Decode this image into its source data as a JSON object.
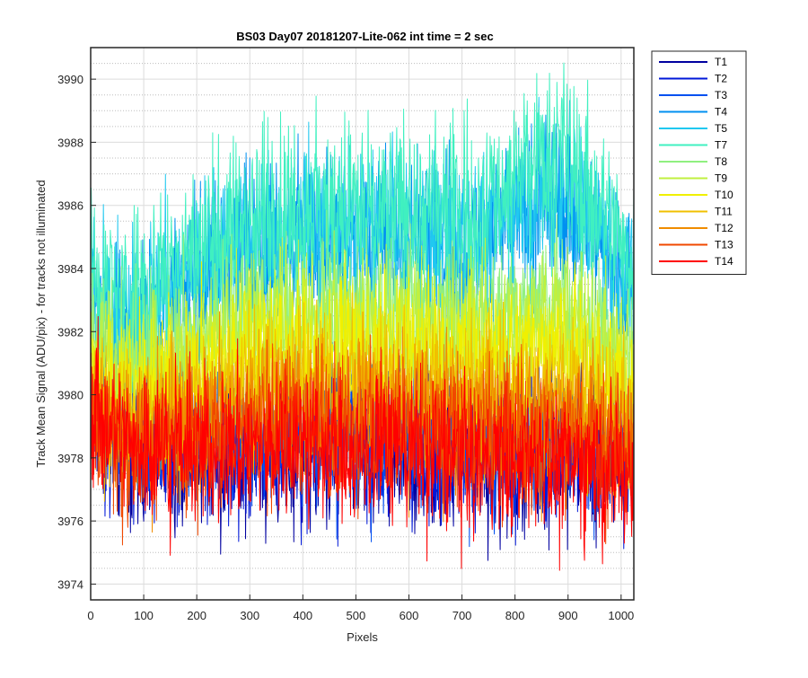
{
  "chart_data": {
    "type": "line",
    "title": "BS03 Day07 20181207-Lite-062 int time = 2 sec",
    "xlabel": "Pixels",
    "ylabel": "Track Mean Signal (ADU/pix) - for tracks not illuminated",
    "xlim": [
      0,
      1024
    ],
    "ylim": [
      3973.5,
      3991
    ],
    "x_ticks": [
      0,
      100,
      200,
      300,
      400,
      500,
      600,
      700,
      800,
      900,
      1000
    ],
    "y_ticks": [
      3974,
      3976,
      3978,
      3980,
      3982,
      3984,
      3986,
      3988,
      3990
    ],
    "x_tick_labels": [
      "0",
      "100",
      "200",
      "300",
      "400",
      "500",
      "600",
      "700",
      "800",
      "900",
      "1000"
    ],
    "y_tick_labels": [
      "3974",
      "3976",
      "3978",
      "3980",
      "3982",
      "3984",
      "3986",
      "3988",
      "3990"
    ],
    "grid": true,
    "legend_position": "outside-right",
    "x_samples": [
      0,
      64,
      128,
      192,
      256,
      320,
      384,
      448,
      512,
      576,
      640,
      704,
      768,
      832,
      896,
      960,
      1024
    ],
    "series": [
      {
        "name": "T1",
        "color": "#0000a0",
        "noise_amplitude": 2.5,
        "mean_values": [
          3979.5,
          3978.4,
          3978.2,
          3978.1,
          3978.2,
          3978.1,
          3978.2,
          3978.2,
          3978.1,
          3978.2,
          3978.1,
          3978.0,
          3978.0,
          3978.0,
          3978.1,
          3978.0,
          3978.2
        ]
      },
      {
        "name": "T2",
        "color": "#0018d8",
        "noise_amplitude": 2.5,
        "mean_values": [
          3979.8,
          3978.7,
          3978.5,
          3978.4,
          3978.5,
          3978.4,
          3978.5,
          3978.5,
          3978.4,
          3978.5,
          3978.4,
          3978.3,
          3978.3,
          3978.3,
          3978.4,
          3978.3,
          3978.5
        ]
      },
      {
        "name": "T3",
        "color": "#0050f0",
        "noise_amplitude": 2.5,
        "mean_values": [
          3980.0,
          3979.0,
          3978.8,
          3978.7,
          3978.8,
          3978.7,
          3978.8,
          3978.8,
          3978.7,
          3978.8,
          3978.7,
          3978.6,
          3978.6,
          3978.6,
          3978.7,
          3978.6,
          3978.8
        ]
      },
      {
        "name": "T4",
        "color": "#0090f0",
        "noise_amplitude": 2.8,
        "mean_values": [
          3983.0,
          3982.0,
          3983.0,
          3983.6,
          3984.3,
          3984.7,
          3984.9,
          3985.0,
          3985.0,
          3985.0,
          3984.8,
          3984.8,
          3985.3,
          3986.0,
          3986.3,
          3985.0,
          3983.3
        ]
      },
      {
        "name": "T5",
        "color": "#20c8f0",
        "noise_amplitude": 2.8,
        "mean_values": [
          3983.2,
          3982.2,
          3983.2,
          3983.8,
          3984.5,
          3984.9,
          3985.1,
          3985.2,
          3985.2,
          3985.2,
          3985.0,
          3985.0,
          3985.6,
          3986.3,
          3986.7,
          3985.3,
          3983.5
        ]
      },
      {
        "name": "T7",
        "color": "#40f0c0",
        "noise_amplitude": 3.0,
        "mean_values": [
          3984.0,
          3983.0,
          3983.8,
          3984.5,
          3985.2,
          3985.6,
          3985.8,
          3985.9,
          3985.9,
          3985.9,
          3985.7,
          3985.8,
          3986.5,
          3987.2,
          3987.6,
          3986.0,
          3984.2
        ]
      },
      {
        "name": "T8",
        "color": "#90f080",
        "noise_amplitude": 2.6,
        "mean_values": [
          3982.0,
          3981.0,
          3981.3,
          3981.8,
          3982.3,
          3982.5,
          3982.6,
          3982.6,
          3982.5,
          3982.6,
          3982.4,
          3982.3,
          3982.5,
          3982.8,
          3982.9,
          3982.1,
          3981.2
        ]
      },
      {
        "name": "T9",
        "color": "#c0f040",
        "noise_amplitude": 2.6,
        "mean_values": [
          3981.6,
          3980.6,
          3980.9,
          3981.3,
          3981.8,
          3982.0,
          3982.1,
          3982.1,
          3982.0,
          3982.1,
          3981.9,
          3981.8,
          3982.0,
          3982.2,
          3982.3,
          3981.6,
          3980.8
        ]
      },
      {
        "name": "T10",
        "color": "#f0f000",
        "noise_amplitude": 2.6,
        "mean_values": [
          3981.0,
          3980.0,
          3980.3,
          3980.7,
          3981.1,
          3981.3,
          3981.4,
          3981.4,
          3981.3,
          3981.4,
          3981.2,
          3981.1,
          3981.2,
          3981.4,
          3981.5,
          3980.9,
          3980.2
        ]
      },
      {
        "name": "T11",
        "color": "#f0c000",
        "noise_amplitude": 2.5,
        "mean_values": [
          3980.2,
          3979.3,
          3979.5,
          3979.8,
          3980.1,
          3980.2,
          3980.3,
          3980.3,
          3980.2,
          3980.3,
          3980.1,
          3980.0,
          3980.0,
          3980.1,
          3980.1,
          3979.7,
          3979.2
        ]
      },
      {
        "name": "T12",
        "color": "#f08c00",
        "noise_amplitude": 2.5,
        "mean_values": [
          3979.6,
          3978.8,
          3979.0,
          3979.2,
          3979.4,
          3979.5,
          3979.6,
          3979.6,
          3979.5,
          3979.5,
          3979.4,
          3979.3,
          3979.3,
          3979.4,
          3979.4,
          3979.0,
          3978.6
        ]
      },
      {
        "name": "T13",
        "color": "#f04800",
        "noise_amplitude": 2.5,
        "mean_values": [
          3979.2,
          3978.4,
          3978.5,
          3978.7,
          3978.8,
          3978.9,
          3979.0,
          3979.0,
          3978.9,
          3978.9,
          3978.8,
          3978.7,
          3978.6,
          3978.7,
          3978.7,
          3978.4,
          3978.1
        ]
      },
      {
        "name": "T14",
        "color": "#ff0000",
        "noise_amplitude": 2.6,
        "mean_values": [
          3979.8,
          3978.6,
          3978.4,
          3978.3,
          3978.4,
          3978.3,
          3978.4,
          3978.3,
          3978.2,
          3978.3,
          3978.2,
          3978.0,
          3977.9,
          3977.9,
          3978.0,
          3977.8,
          3977.6
        ]
      }
    ]
  }
}
